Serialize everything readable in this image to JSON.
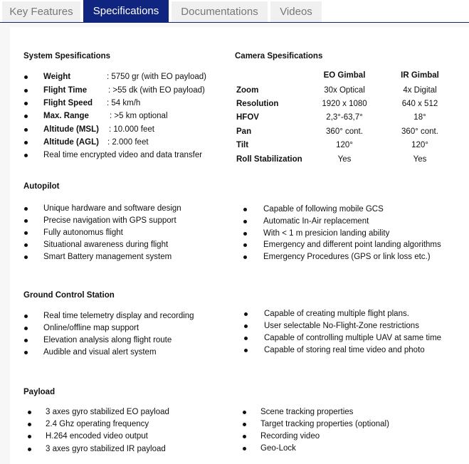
{
  "tabs": [
    "Key Features",
    "Specifications",
    "Documentations",
    "Videos"
  ],
  "active_tab": "Specifications",
  "system": {
    "title": "System Spesifications",
    "items": [
      {
        "label": "Weight",
        "value": ": 5750 gr (with EO payload)"
      },
      {
        "label": "Flight Time",
        "value": ":  >55 dk (with EO payload)"
      },
      {
        "label": "Flight Speed",
        "value": ": 54 km/h"
      },
      {
        "label": "Max. Range",
        "value": ": >5 km optional"
      },
      {
        "label": "Altitude (MSL)",
        "value": ": 10.000 feet"
      },
      {
        "label": "Altitude (AGL)",
        "value": ": 2.000 feet"
      }
    ],
    "extra": "Real time encrypted video and data transfer"
  },
  "camera": {
    "title": "Camera Spesifications",
    "columns": [
      "EO Gimbal",
      "IR Gimbal"
    ],
    "rows": [
      {
        "label": "Zoom",
        "eo": "30x Optical",
        "ir": "4x Digital"
      },
      {
        "label": "Resolution",
        "eo": "1920 x 1080",
        "ir": "640 x 512"
      },
      {
        "label": "HFOV",
        "eo": "2,3°-63,7°",
        "ir": "18°"
      },
      {
        "label": "Pan",
        "eo": "360° cont.",
        "ir": "360° cont."
      },
      {
        "label": "Tilt",
        "eo": "120°",
        "ir": "120°"
      },
      {
        "label": "Roll Stabilization",
        "eo": "Yes",
        "ir": "Yes"
      }
    ]
  },
  "autopilot": {
    "title": "Autopilot",
    "left": [
      "Unique hardware and software design",
      "Precise navigation with GPS support",
      "Fully autonomus flight",
      "Situational awareness during flight",
      "Smart Battery management system"
    ],
    "right": [
      "Capable of following mobile GCS",
      "Automatic In-Air replacement",
      "With < 1 m presicion landing  ability",
      "Emergency and different point landing algorithms",
      "Emergency Procedures (GPS or link loss etc.)"
    ]
  },
  "gcs": {
    "title": "Ground Control Station",
    "left": [
      "Real time telemetry display and recording",
      "Online/offline map support",
      "Elevation analysis along flight route",
      "Audible and visual alert system"
    ],
    "right": [
      "Capable of creating multiple flight plans.",
      "User selectable No-Flight-Zone restrictions",
      "Capable of controlling multiple UAV at same time",
      "Capable of storing real time video and photo"
    ]
  },
  "payload": {
    "title": "Payload",
    "left": [
      "3 axes gyro stabilized EO payload",
      "2.4 Ghz operating frequency",
      "H.264 encoded video output",
      "3 axes gyro stabilized IR payload"
    ],
    "right": [
      "Scene tracking properties",
      "Target tracking properties (optional)",
      "Recording video",
      "Geo-Lock"
    ]
  }
}
